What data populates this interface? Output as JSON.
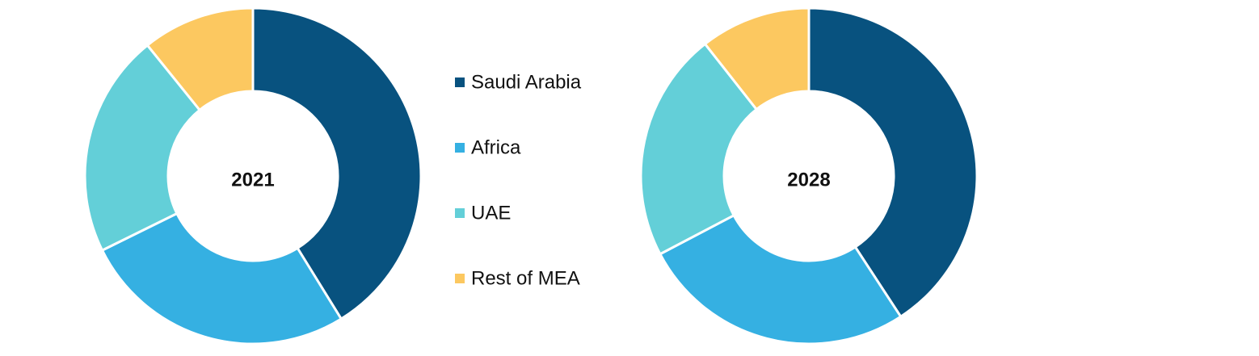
{
  "chart_data": [
    {
      "type": "pie",
      "title": "2021",
      "categories": [
        "Saudi Arabia",
        "Africa",
        "UAE",
        "Rest of MEA"
      ],
      "values": [
        41.2,
        26.5,
        21.5,
        10.8
      ],
      "colors": [
        "#08527f",
        "#35b0e2",
        "#63cfd8",
        "#fcc860"
      ]
    },
    {
      "type": "pie",
      "title": "2028",
      "categories": [
        "Saudi Arabia",
        "Africa",
        "UAE",
        "Rest of MEA"
      ],
      "values": [
        40.8,
        26.5,
        22.1,
        10.6
      ],
      "colors": [
        "#08527f",
        "#35b0e2",
        "#63cfd8",
        "#fcc860"
      ]
    }
  ]
}
